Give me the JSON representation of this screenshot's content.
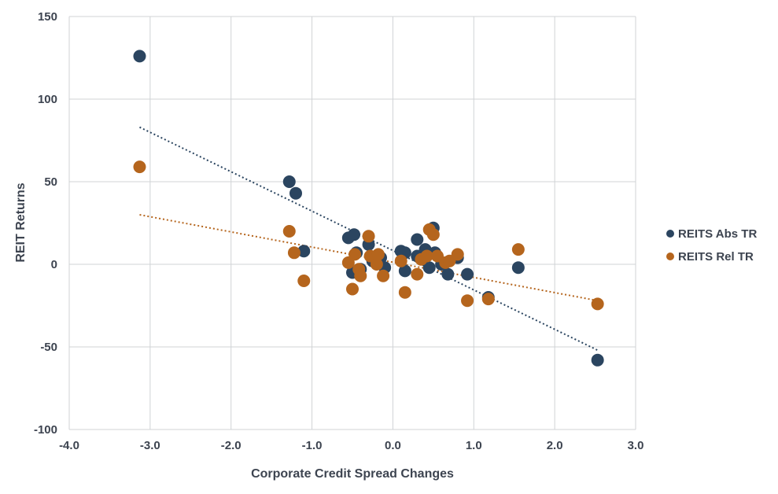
{
  "chart_data": {
    "type": "scatter",
    "title": "",
    "xlabel": "Corporate Credit Spread Changes",
    "ylabel": "REIT Returns",
    "xlim": [
      -4.0,
      3.0
    ],
    "ylim": [
      -100,
      150
    ],
    "x_ticks": [
      "-4.0",
      "-3.0",
      "-2.0",
      "-1.0",
      "0.0",
      "1.0",
      "2.0",
      "3.0"
    ],
    "y_ticks": [
      "150",
      "100",
      "50",
      "0",
      "-50",
      "-100"
    ],
    "grid": true,
    "legend_position": "right",
    "series": [
      {
        "name": "REITS Abs TR",
        "color": "#2b4560",
        "points": [
          [
            -3.13,
            126
          ],
          [
            -1.28,
            50
          ],
          [
            -1.2,
            43
          ],
          [
            -1.1,
            8
          ],
          [
            -0.55,
            16
          ],
          [
            -0.48,
            18
          ],
          [
            -0.5,
            -5
          ],
          [
            -0.45,
            7
          ],
          [
            -0.4,
            -3
          ],
          [
            -0.3,
            12
          ],
          [
            -0.25,
            2
          ],
          [
            -0.15,
            4
          ],
          [
            -0.1,
            -2
          ],
          [
            0.1,
            8
          ],
          [
            0.15,
            -4
          ],
          [
            0.15,
            7
          ],
          [
            0.3,
            15
          ],
          [
            0.3,
            5
          ],
          [
            0.4,
            9
          ],
          [
            0.45,
            -2
          ],
          [
            0.5,
            22
          ],
          [
            0.52,
            7
          ],
          [
            0.6,
            0
          ],
          [
            0.68,
            -6
          ],
          [
            0.8,
            4
          ],
          [
            0.92,
            -6
          ],
          [
            1.18,
            -20
          ],
          [
            1.55,
            -2
          ],
          [
            2.53,
            -58
          ]
        ],
        "trendline": [
          [
            -3.13,
            83
          ],
          [
            2.53,
            -52
          ]
        ]
      },
      {
        "name": "REITS Rel TR",
        "color": "#b5651d",
        "points": [
          [
            -3.13,
            59
          ],
          [
            -1.28,
            20
          ],
          [
            -1.22,
            7
          ],
          [
            -1.1,
            -10
          ],
          [
            -0.55,
            1
          ],
          [
            -0.5,
            -15
          ],
          [
            -0.47,
            6
          ],
          [
            -0.42,
            -3
          ],
          [
            -0.4,
            -7
          ],
          [
            -0.3,
            17
          ],
          [
            -0.28,
            5
          ],
          [
            -0.2,
            0
          ],
          [
            -0.18,
            6
          ],
          [
            -0.12,
            -7
          ],
          [
            0.1,
            2
          ],
          [
            0.15,
            -17
          ],
          [
            0.3,
            -6
          ],
          [
            0.35,
            3
          ],
          [
            0.42,
            5
          ],
          [
            0.45,
            21
          ],
          [
            0.5,
            18
          ],
          [
            0.55,
            5
          ],
          [
            0.65,
            1
          ],
          [
            0.7,
            2
          ],
          [
            0.8,
            6
          ],
          [
            0.92,
            -22
          ],
          [
            1.18,
            -21
          ],
          [
            1.55,
            9
          ],
          [
            2.53,
            -24
          ]
        ],
        "trendline": [
          [
            -3.13,
            30
          ],
          [
            2.53,
            -22
          ]
        ]
      }
    ]
  }
}
